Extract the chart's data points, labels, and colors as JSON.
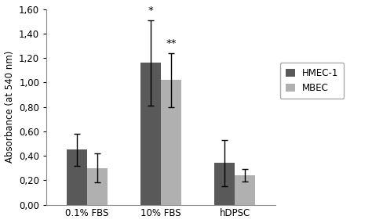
{
  "groups": [
    "0.1% FBS",
    "10% FBS",
    "hDPSC"
  ],
  "series": {
    "HMEC-1": {
      "values": [
        0.45,
        1.16,
        0.34
      ],
      "errors": [
        0.13,
        0.35,
        0.19
      ],
      "color": "#595959"
    },
    "MBEC": {
      "values": [
        0.3,
        1.02,
        0.24
      ],
      "errors": [
        0.12,
        0.22,
        0.05
      ],
      "color": "#b0b0b0"
    }
  },
  "ylabel": "Absorbance (at 540 nm)",
  "ylim": [
    0.0,
    1.6
  ],
  "yticks": [
    0.0,
    0.2,
    0.4,
    0.6,
    0.8,
    1.0,
    1.2,
    1.4,
    1.6
  ],
  "ytick_labels": [
    "0,00",
    "0,20",
    "0,40",
    "0,60",
    "0,80",
    "1,00",
    "1,20",
    "1,40",
    "1,60"
  ],
  "bar_width": 0.28,
  "annotations": [
    {
      "group": 1,
      "series": "HMEC-1",
      "text": "*"
    },
    {
      "group": 1,
      "series": "MBEC",
      "text": "**"
    }
  ],
  "legend_labels": [
    "HMEC-1",
    "MBEC"
  ],
  "background_color": "#ffffff",
  "error_capsize": 3,
  "font_size": 8.5
}
